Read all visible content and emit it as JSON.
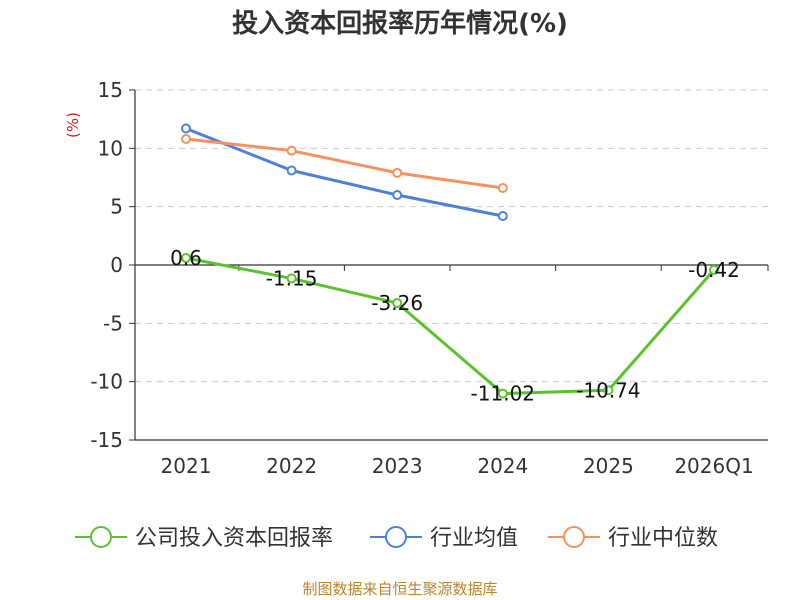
{
  "chart_data": {
    "type": "line",
    "title": "投入资本回报率历年情况(%)",
    "ylabel": "(%)",
    "categories": [
      "2021",
      "2022",
      "2023",
      "2024",
      "2025",
      "2026Q1"
    ],
    "yticks": [
      15,
      10,
      5,
      0,
      -5,
      -10,
      -15
    ],
    "ylim": [
      -15,
      15
    ],
    "grid": true,
    "legend_position": "bottom",
    "series": [
      {
        "name": "公司投入资本回报率",
        "color": "#5cc22b",
        "values": [
          0.6,
          -1.15,
          -3.26,
          -11.02,
          -10.74,
          -0.42
        ],
        "labels": [
          "0.6",
          "-1.15",
          "-3.26",
          "-11.02",
          "-10.74",
          "-0.42"
        ]
      },
      {
        "name": "行业均值",
        "color": "#4f80d9",
        "values": [
          11.7,
          8.1,
          6.0,
          4.2,
          null,
          null
        ]
      },
      {
        "name": "行业中位数",
        "color": "#f59160",
        "values": [
          10.8,
          9.8,
          7.9,
          6.6,
          null,
          null
        ]
      }
    ]
  },
  "source": "制图数据来自恒生聚源数据库"
}
